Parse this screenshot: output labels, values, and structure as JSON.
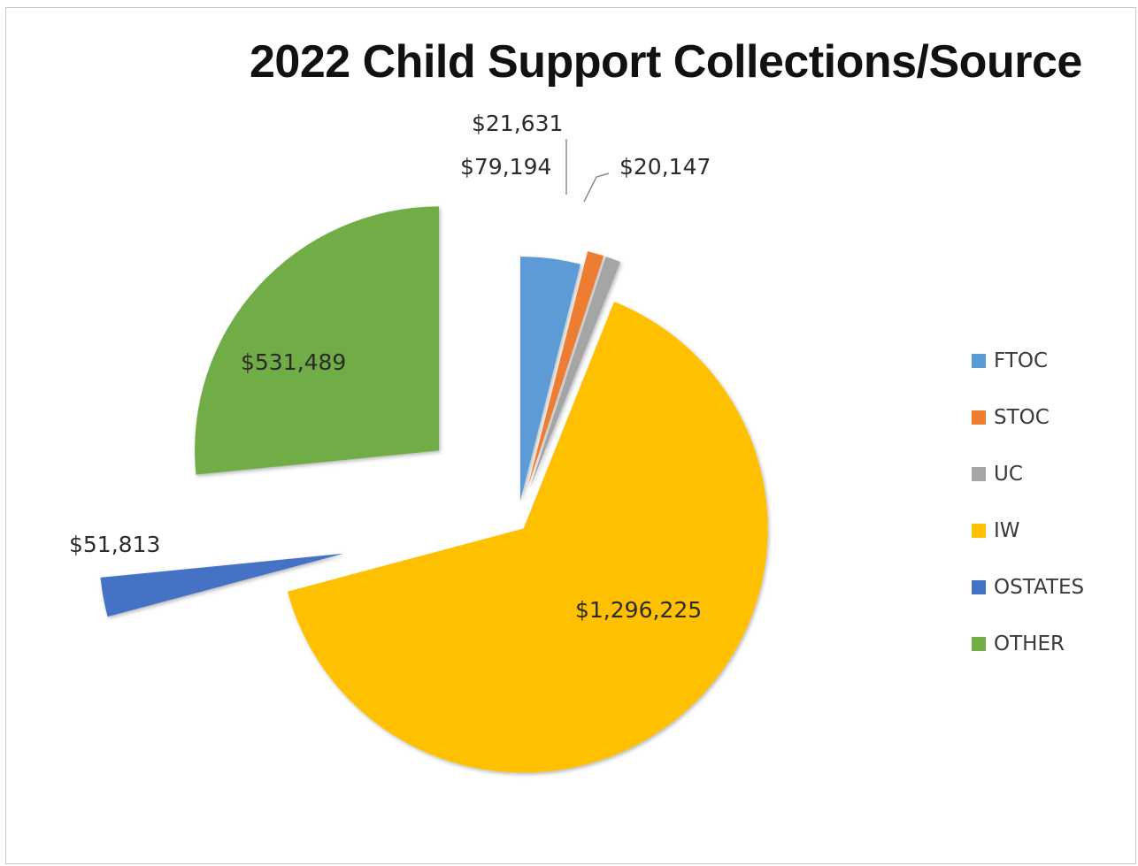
{
  "chart_data": {
    "type": "pie",
    "title": "2022 Child Support Collections/Source",
    "exploded": true,
    "legend_position": "right",
    "slices": [
      {
        "label": "FTOC",
        "value": 79194,
        "value_label": "$79,194",
        "color": "#5b9bd5"
      },
      {
        "label": "STOC",
        "value": 21631,
        "value_label": "$21,631",
        "color": "#ed7d31"
      },
      {
        "label": "UC",
        "value": 20147,
        "value_label": "$20,147",
        "color": "#a5a5a5"
      },
      {
        "label": "IW",
        "value": 1296225,
        "value_label": "$1,296,225",
        "color": "#ffc000"
      },
      {
        "label": "OSTATES",
        "value": 51813,
        "value_label": "$51,813",
        "color": "#4472c4"
      },
      {
        "label": "OTHER",
        "value": 531489,
        "value_label": "$531,489",
        "color": "#70ad47"
      }
    ]
  }
}
